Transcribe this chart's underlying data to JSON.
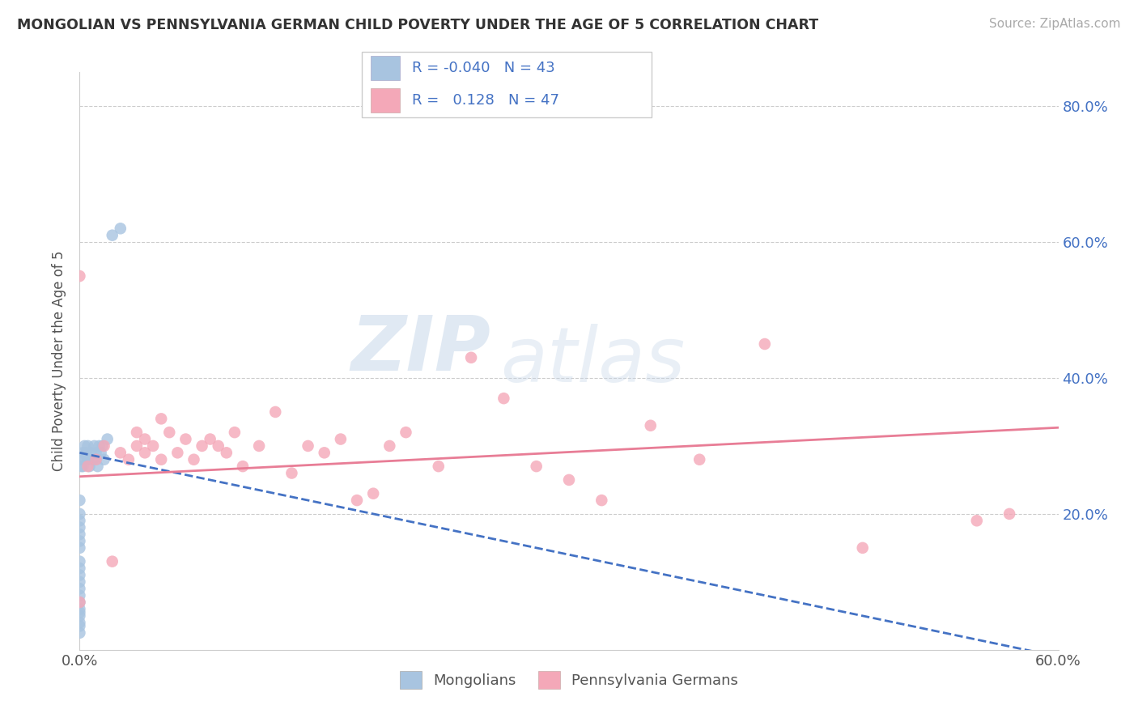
{
  "title": "MONGOLIAN VS PENNSYLVANIA GERMAN CHILD POVERTY UNDER THE AGE OF 5 CORRELATION CHART",
  "source": "Source: ZipAtlas.com",
  "ylabel": "Child Poverty Under the Age of 5",
  "xlim": [
    0.0,
    0.6
  ],
  "ylim": [
    0.0,
    0.85
  ],
  "mongolian_color": "#a8c4e0",
  "pa_german_color": "#f4a8b8",
  "mongolian_line_color": "#4472c4",
  "pa_german_line_color": "#e87d96",
  "r_mongolian": -0.04,
  "n_mongolian": 43,
  "r_pa_german": 0.128,
  "n_pa_german": 47,
  "mongolian_scatter_x": [
    0.0,
    0.0,
    0.0,
    0.0,
    0.0,
    0.0,
    0.0,
    0.0,
    0.0,
    0.0,
    0.0,
    0.0,
    0.0,
    0.0,
    0.0,
    0.0,
    0.0,
    0.0,
    0.0,
    0.0,
    0.001,
    0.001,
    0.002,
    0.002,
    0.003,
    0.003,
    0.004,
    0.005,
    0.005,
    0.006,
    0.007,
    0.008,
    0.009,
    0.01,
    0.01,
    0.011,
    0.012,
    0.013,
    0.014,
    0.015,
    0.017,
    0.02,
    0.025
  ],
  "mongolian_scatter_y": [
    0.025,
    0.035,
    0.04,
    0.05,
    0.055,
    0.06,
    0.07,
    0.08,
    0.09,
    0.1,
    0.11,
    0.12,
    0.13,
    0.15,
    0.16,
    0.17,
    0.18,
    0.19,
    0.2,
    0.22,
    0.27,
    0.28,
    0.27,
    0.29,
    0.28,
    0.3,
    0.29,
    0.28,
    0.3,
    0.27,
    0.29,
    0.28,
    0.3,
    0.28,
    0.29,
    0.27,
    0.3,
    0.29,
    0.3,
    0.28,
    0.31,
    0.61,
    0.62
  ],
  "pa_german_scatter_x": [
    0.0,
    0.0,
    0.005,
    0.01,
    0.015,
    0.02,
    0.025,
    0.03,
    0.035,
    0.035,
    0.04,
    0.04,
    0.045,
    0.05,
    0.05,
    0.055,
    0.06,
    0.065,
    0.07,
    0.075,
    0.08,
    0.085,
    0.09,
    0.095,
    0.1,
    0.11,
    0.12,
    0.13,
    0.14,
    0.15,
    0.16,
    0.17,
    0.18,
    0.19,
    0.2,
    0.22,
    0.24,
    0.26,
    0.28,
    0.3,
    0.32,
    0.35,
    0.38,
    0.42,
    0.48,
    0.55,
    0.57
  ],
  "pa_german_scatter_y": [
    0.07,
    0.55,
    0.27,
    0.28,
    0.3,
    0.13,
    0.29,
    0.28,
    0.3,
    0.32,
    0.29,
    0.31,
    0.3,
    0.28,
    0.34,
    0.32,
    0.29,
    0.31,
    0.28,
    0.3,
    0.31,
    0.3,
    0.29,
    0.32,
    0.27,
    0.3,
    0.35,
    0.26,
    0.3,
    0.29,
    0.31,
    0.22,
    0.23,
    0.3,
    0.32,
    0.27,
    0.43,
    0.37,
    0.27,
    0.25,
    0.22,
    0.33,
    0.28,
    0.45,
    0.15,
    0.19,
    0.2
  ],
  "watermark_zip": "ZIP",
  "watermark_atlas": "atlas",
  "background_color": "#ffffff",
  "grid_color": "#cccccc",
  "tick_color": "#4472c4",
  "spine_color": "#cccccc"
}
